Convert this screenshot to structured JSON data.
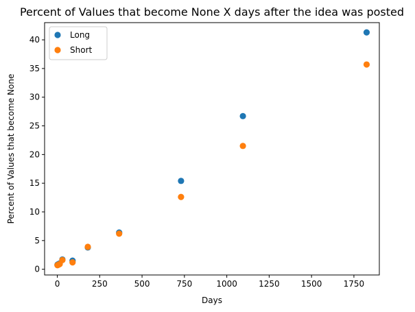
{
  "chart_data": {
    "type": "scatter",
    "title": "Percent of Values that become None X days after the idea was posted",
    "xlabel": "Days",
    "ylabel": "Percent of Values that become None",
    "xlim": [
      -75,
      1900
    ],
    "ylim": [
      -1,
      43
    ],
    "x_ticks": [
      0,
      250,
      500,
      750,
      1000,
      1250,
      1500,
      1750
    ],
    "y_ticks": [
      0,
      5,
      10,
      15,
      20,
      25,
      30,
      35,
      40
    ],
    "grid": false,
    "legend_position": "top-left",
    "series": [
      {
        "name": "Long",
        "color": "#1f77b4",
        "points": [
          {
            "x": 1,
            "y": 0.8
          },
          {
            "x": 7,
            "y": 0.9
          },
          {
            "x": 14,
            "y": 1.0
          },
          {
            "x": 30,
            "y": 1.7
          },
          {
            "x": 90,
            "y": 1.5
          },
          {
            "x": 180,
            "y": 3.8
          },
          {
            "x": 365,
            "y": 6.4
          },
          {
            "x": 730,
            "y": 15.4
          },
          {
            "x": 1095,
            "y": 26.7
          },
          {
            "x": 1825,
            "y": 41.3
          }
        ]
      },
      {
        "name": "Short",
        "color": "#ff7f0e",
        "points": [
          {
            "x": 1,
            "y": 0.7
          },
          {
            "x": 7,
            "y": 0.8
          },
          {
            "x": 14,
            "y": 0.9
          },
          {
            "x": 30,
            "y": 1.6
          },
          {
            "x": 90,
            "y": 1.2
          },
          {
            "x": 180,
            "y": 3.9
          },
          {
            "x": 365,
            "y": 6.2
          },
          {
            "x": 730,
            "y": 12.6
          },
          {
            "x": 1095,
            "y": 21.5
          },
          {
            "x": 1825,
            "y": 35.7
          }
        ]
      }
    ]
  }
}
